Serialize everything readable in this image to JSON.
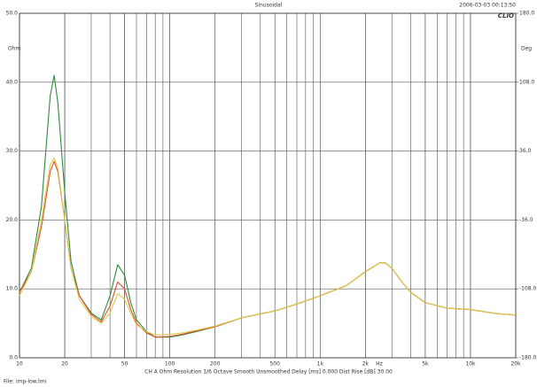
{
  "chart_data": {
    "type": "line",
    "title": "Sinusoidal",
    "timestamp": "2006-03-03 00:13:50",
    "logo": "CLIO",
    "y_label": "Ohm",
    "y2_label": "Deg",
    "x_label": "Hz",
    "x": [
      10,
      12,
      14,
      16,
      17,
      18,
      20,
      22,
      25,
      30,
      35,
      40,
      45,
      50,
      55,
      60,
      70,
      80,
      100,
      120,
      150,
      200,
      300,
      500,
      700,
      1000,
      1500,
      2000,
      2500,
      2700,
      3000,
      3500,
      4000,
      5000,
      7000,
      10000,
      15000,
      20000
    ],
    "series": [
      {
        "name": "Green",
        "color": "#2e8b3a",
        "values": [
          9.5,
          13,
          22,
          38,
          41,
          37,
          24,
          14,
          9,
          6.5,
          5.5,
          9,
          13.5,
          12,
          8,
          5.5,
          3.8,
          3,
          3,
          3.3,
          3.8,
          4.5,
          5.8,
          6.8,
          7.8,
          9,
          10.5,
          12.5,
          13.8,
          13.8,
          13,
          11,
          9.5,
          8,
          7.2,
          7,
          6.4,
          6.2
        ]
      },
      {
        "name": "Red",
        "color": "#d9532c",
        "values": [
          9.5,
          12.5,
          19,
          27,
          28.5,
          27,
          20,
          13,
          9,
          6.3,
          5.2,
          7.5,
          11,
          10,
          7,
          5,
          3.6,
          3,
          3.1,
          3.4,
          3.9,
          4.5,
          5.8,
          6.8,
          7.8,
          9,
          10.5,
          12.5,
          13.8,
          13.8,
          13,
          11,
          9.5,
          8,
          7.2,
          7,
          6.4,
          6.2
        ]
      },
      {
        "name": "Yellow",
        "color": "#e0c84a",
        "values": [
          9,
          12.5,
          20,
          28,
          29,
          27.5,
          20,
          13,
          8.5,
          6,
          5,
          6.5,
          9.3,
          8.5,
          6.5,
          4.8,
          3.8,
          3.3,
          3.4,
          3.6,
          4,
          4.6,
          5.8,
          6.8,
          7.8,
          9,
          10.5,
          12.5,
          13.8,
          13.8,
          13,
          11,
          9.5,
          8,
          7.2,
          7,
          6.4,
          6.2
        ]
      }
    ],
    "log_x": true,
    "xlim": [
      10,
      20000
    ],
    "xticks": [
      10,
      20,
      50,
      100,
      200,
      500,
      {
        "value": 1000,
        "label": "1k"
      },
      {
        "value": 2000,
        "label": "2k"
      },
      {
        "value": 5000,
        "label": "5k"
      },
      {
        "value": 10000,
        "label": "10k"
      },
      {
        "value": 20000,
        "label": "20k"
      }
    ],
    "ylim": [
      0,
      50
    ],
    "yticks": [
      {
        "value": 0,
        "label": "0.0"
      },
      {
        "value": 10,
        "label": "10.0"
      },
      {
        "value": 20,
        "label": "20.0"
      },
      {
        "value": 30,
        "label": "30.0"
      },
      {
        "value": 40,
        "label": "40.0"
      },
      {
        "value": 50,
        "label": "50.0"
      }
    ],
    "y2lim": [
      -180,
      180
    ],
    "y2ticks": [
      {
        "value": -180,
        "label": "-180.0"
      },
      {
        "value": -108,
        "label": "-108.0"
      },
      {
        "value": -36,
        "label": "-36.0"
      },
      {
        "value": 36,
        "label": "36.0"
      },
      {
        "value": 108,
        "label": "108.0"
      },
      {
        "value": 180,
        "label": "180.0"
      }
    ],
    "grid": true,
    "footer": "CH A   Ohm   Resolution 1/6 Octave   Smooth Unsmoothed   Delay [ms] 0.000   Dist Rise [dB] 30.00",
    "file": "File: imp-low.lmi"
  }
}
